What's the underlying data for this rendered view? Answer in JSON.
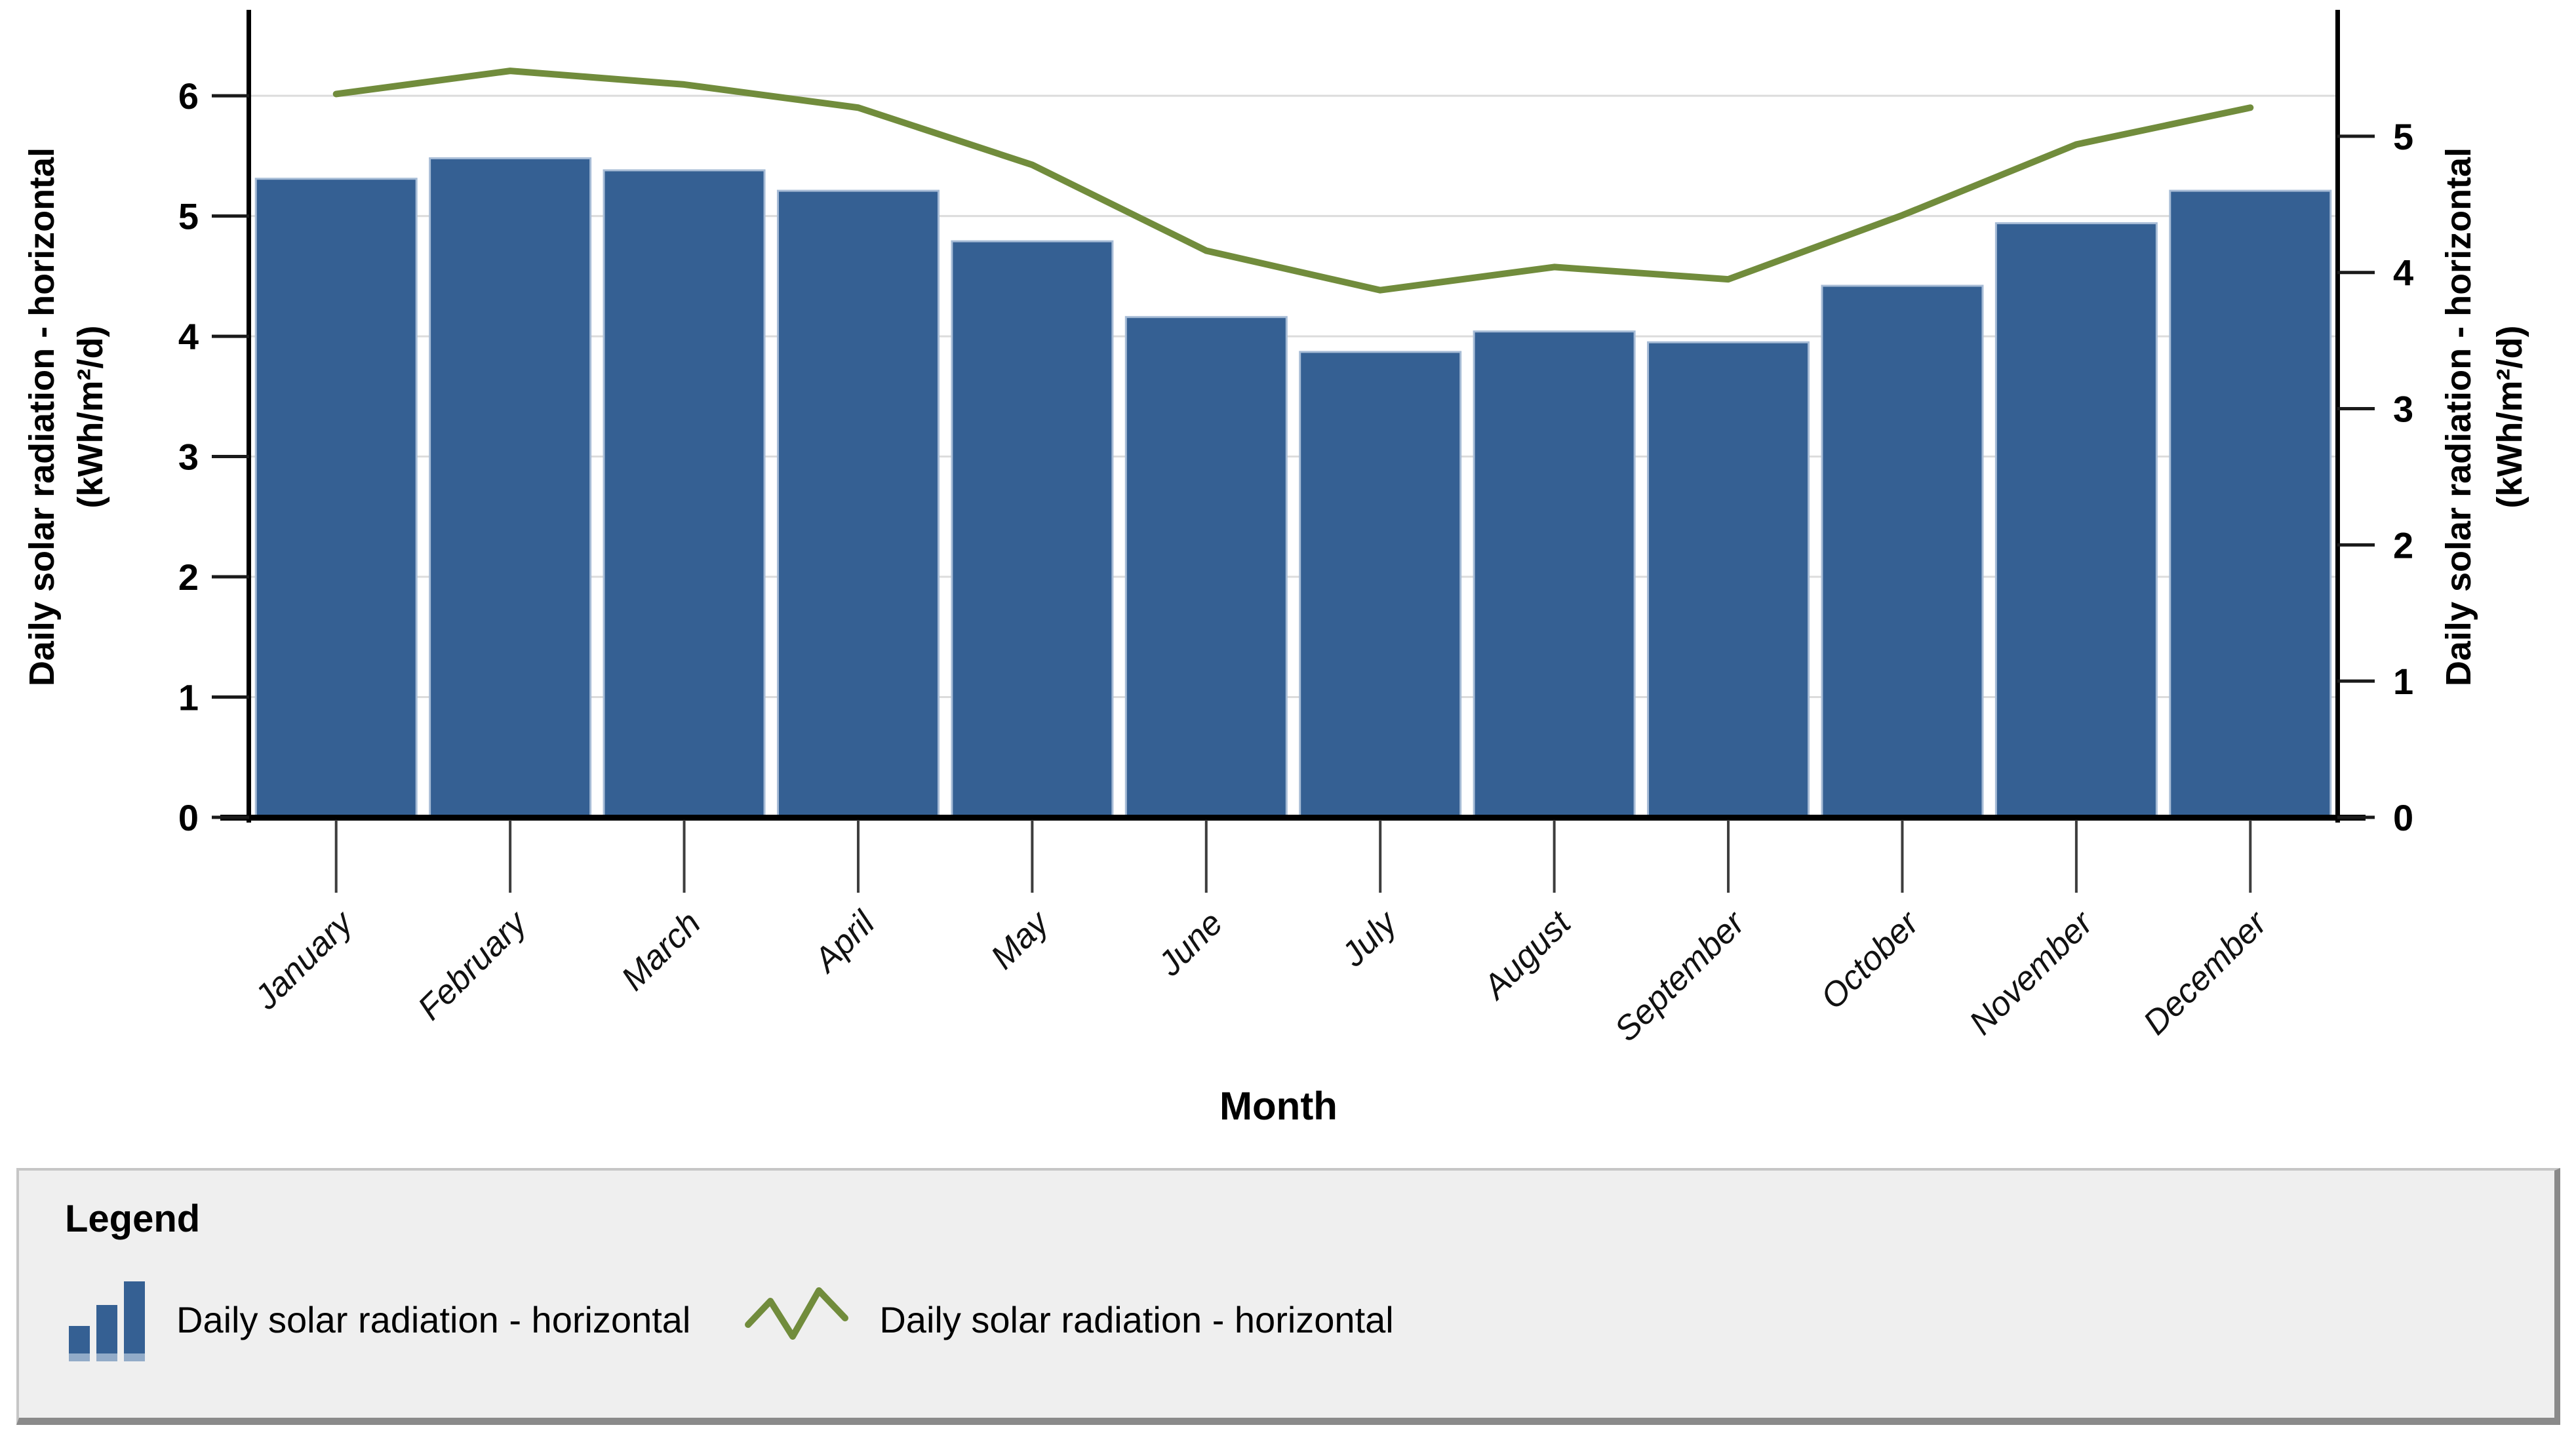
{
  "chart_data": {
    "type": "bar",
    "categories": [
      "January",
      "February",
      "March",
      "April",
      "May",
      "June",
      "July",
      "August",
      "September",
      "October",
      "November",
      "December"
    ],
    "series": [
      {
        "name": "Daily solar radiation - horizontal",
        "type": "bar",
        "axis": "left",
        "values": [
          5.31,
          5.48,
          5.38,
          5.21,
          4.79,
          4.16,
          3.87,
          4.04,
          3.95,
          4.42,
          4.94,
          5.21
        ]
      },
      {
        "name": "Daily solar radiation - horizontal",
        "type": "line",
        "axis": "right",
        "values": [
          5.31,
          5.48,
          5.38,
          5.21,
          4.79,
          4.16,
          3.87,
          4.04,
          3.95,
          4.42,
          4.94,
          5.21
        ]
      }
    ],
    "title": "",
    "xlabel": "Month",
    "left_axis": {
      "title_line1": "Daily solar radiation - horizontal",
      "title_line2": "(kWh/m²/d)",
      "ticks": [
        0,
        1,
        2,
        3,
        4,
        5,
        6
      ],
      "ylim": [
        0,
        6.66
      ]
    },
    "right_axis": {
      "title_line1": "Daily solar radiation - horizontal",
      "title_line2": "(kWh/m²/d)",
      "ticks": [
        0,
        1,
        2,
        3,
        4,
        5
      ],
      "ylim": [
        0,
        5.88
      ]
    },
    "grid": "horizontal gridlines at left-axis integers",
    "legend_position": "bottom",
    "colors": {
      "bar_fill": "#356093",
      "bar_border": "#A7BCD6",
      "line": "#718C3C",
      "gridline": "#DCDCDC",
      "axis": "#000000",
      "x_tick": "#3D3D3D",
      "legend_bg": "#EFEFEF",
      "legend_border_dark": "#8A8A8A",
      "legend_border_light": "#C6C6C6"
    }
  },
  "legend": {
    "title": "Legend",
    "items": [
      {
        "icon": "bar-chart-icon",
        "label": "Daily solar radiation - horizontal"
      },
      {
        "icon": "line-chart-icon",
        "label": "Daily solar radiation - horizontal"
      }
    ]
  }
}
